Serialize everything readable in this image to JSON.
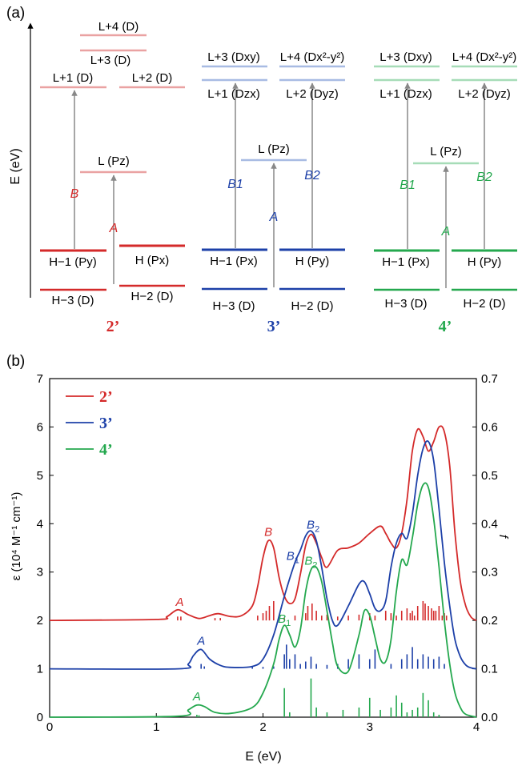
{
  "panel_a": {
    "label": "(a)",
    "axis_label": "E (eV)",
    "colors": {
      "red": "#d42a2a",
      "red_light": "#eaa2a2",
      "blue": "#1d40a8",
      "blue_light": "#a8bbe3",
      "green": "#24a84e",
      "green_light": "#a6dcb7",
      "arrow": "#888888"
    },
    "compounds": [
      {
        "name": "2’",
        "color": "#d42a2a",
        "light_color": "#eaa2a2",
        "levels": [
          {
            "text": "L+4 (D)",
            "role": "lumo"
          },
          {
            "text": "L+3 (D)",
            "role": "lumo"
          },
          {
            "text": "L+1 (D)",
            "role": "lumo"
          },
          {
            "text": "L+2 (D)",
            "role": "lumo"
          },
          {
            "text": "L (Pz)",
            "role": "lumo"
          },
          {
            "text": "H−1 (Py)",
            "role": "homo"
          },
          {
            "text": "H (Px)",
            "role": "homo"
          },
          {
            "text": "H−3 (D)",
            "role": "homo"
          },
          {
            "text": "H−2 (D)",
            "role": "homo"
          }
        ],
        "transitions": [
          {
            "label": "B",
            "from": "H−1",
            "to": "L+1"
          },
          {
            "label": "A",
            "from": "H−2",
            "to": "L"
          }
        ]
      },
      {
        "name": "3’",
        "color": "#1d40a8",
        "light_color": "#a8bbe3",
        "levels": [
          {
            "text": "L+3 (Dxy)",
            "role": "lumo"
          },
          {
            "text": "L+4 (Dx²-y²)",
            "role": "lumo"
          },
          {
            "text": "L+1 (Dzx)",
            "role": "lumo"
          },
          {
            "text": "L+2 (Dyz)",
            "role": "lumo"
          },
          {
            "text": "L (Pz)",
            "role": "lumo"
          },
          {
            "text": "H−1 (Px)",
            "role": "homo"
          },
          {
            "text": "H (Py)",
            "role": "homo"
          },
          {
            "text": "H−3 (D)",
            "role": "homo"
          },
          {
            "text": "H−2 (D)",
            "role": "homo"
          }
        ],
        "transitions": [
          {
            "label": "B1",
            "from": "H−1",
            "to": "L+1"
          },
          {
            "label": "A",
            "from": "H−2",
            "to": "L"
          },
          {
            "label": "B2",
            "from": "H",
            "to": "L+2"
          }
        ]
      },
      {
        "name": "4’",
        "color": "#24a84e",
        "light_color": "#a6dcb7",
        "levels": [
          {
            "text": "L+3 (Dxy)",
            "role": "lumo"
          },
          {
            "text": "L+4 (Dx²-y²)",
            "role": "lumo"
          },
          {
            "text": "L+1 (Dzx)",
            "role": "lumo"
          },
          {
            "text": "L+2 (Dyz)",
            "role": "lumo"
          },
          {
            "text": "L (Pz)",
            "role": "lumo"
          },
          {
            "text": "H−1 (Px)",
            "role": "homo"
          },
          {
            "text": "H (Py)",
            "role": "homo"
          },
          {
            "text": "H−3 (D)",
            "role": "homo"
          },
          {
            "text": "H−2 (D)",
            "role": "homo"
          }
        ],
        "transitions": [
          {
            "label": "B1",
            "from": "H−1",
            "to": "L+1"
          },
          {
            "label": "A",
            "from": "H−2",
            "to": "L"
          },
          {
            "label": "B2",
            "from": "H",
            "to": "L+2"
          }
        ]
      }
    ]
  },
  "panel_b": {
    "label": "(b)"
  },
  "chart_data": {
    "type": "line",
    "title": "",
    "xlabel": "E (eV)",
    "ylabel": "ε (10⁴ M⁻¹ cm⁻¹)",
    "y2label": "f",
    "xlim": [
      0,
      4
    ],
    "ylim": [
      0,
      7
    ],
    "y2lim": [
      0,
      0.7
    ],
    "xticks": [
      "0",
      "1",
      "2",
      "3",
      "4"
    ],
    "yticks": [
      "0",
      "1",
      "2",
      "3",
      "4",
      "5",
      "6",
      "7"
    ],
    "y2ticks": [
      "0.0",
      "0.1",
      "0.2",
      "0.3",
      "0.4",
      "0.5",
      "0.6",
      "0.7"
    ],
    "legend": {
      "placement": "top-left",
      "entries": [
        "2’",
        "3’",
        "4’"
      ]
    },
    "series": [
      {
        "name": "2’",
        "color": "#d42a2a",
        "offset": 2,
        "x": [
          0,
          1.0,
          1.1,
          1.2,
          1.3,
          1.4,
          1.5,
          1.58,
          1.7,
          1.8,
          1.9,
          1.95,
          2.0,
          2.05,
          2.1,
          2.15,
          2.2,
          2.25,
          2.3,
          2.35,
          2.4,
          2.45,
          2.5,
          2.55,
          2.6,
          2.7,
          2.8,
          2.9,
          3.0,
          3.1,
          3.15,
          3.2,
          3.25,
          3.3,
          3.35,
          3.4,
          3.45,
          3.5,
          3.55,
          3.6,
          3.65,
          3.7,
          3.75,
          3.8,
          3.85,
          3.9,
          3.95,
          4.0
        ],
        "y": [
          2.0,
          2.02,
          2.08,
          2.22,
          2.12,
          2.04,
          2.1,
          2.14,
          2.08,
          2.1,
          2.3,
          2.7,
          3.3,
          3.65,
          3.5,
          2.9,
          2.5,
          2.35,
          2.45,
          2.95,
          3.55,
          3.78,
          3.6,
          3.3,
          3.1,
          3.45,
          3.5,
          3.6,
          3.8,
          3.95,
          3.8,
          3.6,
          3.5,
          3.8,
          4.5,
          5.5,
          5.95,
          5.8,
          5.5,
          5.7,
          6.0,
          5.9,
          5.2,
          3.8,
          2.8,
          2.3,
          2.07,
          2.0
        ]
      },
      {
        "name": "3’",
        "color": "#1d40a8",
        "offset": 1,
        "x": [
          0,
          1.2,
          1.3,
          1.35,
          1.42,
          1.5,
          1.6,
          1.7,
          1.9,
          2.0,
          2.1,
          2.2,
          2.3,
          2.35,
          2.4,
          2.45,
          2.5,
          2.55,
          2.6,
          2.65,
          2.7,
          2.8,
          2.9,
          2.95,
          3.0,
          3.05,
          3.1,
          3.15,
          3.2,
          3.25,
          3.3,
          3.35,
          3.4,
          3.45,
          3.5,
          3.55,
          3.6,
          3.65,
          3.7,
          3.75,
          3.8,
          3.85,
          3.9,
          3.95,
          4.0
        ],
        "y": [
          1.0,
          1.0,
          1.1,
          1.28,
          1.4,
          1.2,
          1.07,
          1.03,
          1.05,
          1.2,
          1.7,
          2.5,
          3.2,
          3.45,
          3.75,
          3.85,
          3.65,
          3.1,
          2.45,
          2.0,
          1.9,
          2.3,
          2.75,
          2.8,
          2.55,
          2.25,
          2.2,
          2.4,
          3.1,
          3.6,
          3.8,
          3.7,
          4.2,
          5.0,
          5.55,
          5.7,
          5.3,
          4.3,
          3.2,
          2.3,
          1.6,
          1.25,
          1.08,
          1.02,
          1.0
        ]
      },
      {
        "name": "4’",
        "color": "#24a84e",
        "offset": 0,
        "x": [
          0,
          1.2,
          1.3,
          1.38,
          1.45,
          1.55,
          1.7,
          1.9,
          2.0,
          2.1,
          2.15,
          2.2,
          2.25,
          2.3,
          2.35,
          2.4,
          2.45,
          2.5,
          2.55,
          2.6,
          2.65,
          2.7,
          2.8,
          2.9,
          2.95,
          3.0,
          3.05,
          3.1,
          3.15,
          3.2,
          3.25,
          3.3,
          3.35,
          3.4,
          3.45,
          3.5,
          3.55,
          3.6,
          3.65,
          3.7,
          3.75,
          3.8,
          3.85,
          3.9,
          4.0
        ],
        "y": [
          0.0,
          0.02,
          0.15,
          0.25,
          0.22,
          0.1,
          0.08,
          0.2,
          0.5,
          1.1,
          1.6,
          1.9,
          1.7,
          1.45,
          1.8,
          2.6,
          3.05,
          3.1,
          2.8,
          2.2,
          1.55,
          1.05,
          0.95,
          1.7,
          2.2,
          2.1,
          1.65,
          1.2,
          1.15,
          1.6,
          2.6,
          3.25,
          3.15,
          3.7,
          4.4,
          4.8,
          4.75,
          4.1,
          3.1,
          2.0,
          1.1,
          0.5,
          0.2,
          0.06,
          0.0
        ]
      }
    ],
    "annotations": [
      {
        "text": "A",
        "x": 1.22,
        "y": 2.3,
        "color": "#d42a2a"
      },
      {
        "text": "B",
        "x": 2.05,
        "y": 3.75,
        "color": "#d42a2a"
      },
      {
        "text": "A",
        "x": 1.42,
        "y": 1.5,
        "color": "#1d40a8"
      },
      {
        "text": "B1",
        "x": 2.28,
        "y": 3.25,
        "color": "#1d40a8"
      },
      {
        "text": "B2",
        "x": 2.47,
        "y": 3.9,
        "color": "#1d40a8"
      },
      {
        "text": "A",
        "x": 1.38,
        "y": 0.35,
        "color": "#24a84e"
      },
      {
        "text": "B1",
        "x": 2.2,
        "y": 1.95,
        "color": "#24a84e"
      },
      {
        "text": "B2",
        "x": 2.45,
        "y": 3.15,
        "color": "#24a84e"
      }
    ],
    "sticks": [
      {
        "series": "2’",
        "color": "#d42a2a",
        "base": 0.2,
        "x": [
          1.2,
          1.23,
          1.55,
          1.6,
          1.95,
          2.0,
          2.03,
          2.06,
          2.1,
          2.2,
          2.3,
          2.4,
          2.42,
          2.46,
          2.5,
          2.55,
          2.6,
          2.7,
          2.8,
          2.9,
          3.0,
          3.05,
          3.15,
          3.2,
          3.25,
          3.3,
          3.35,
          3.38,
          3.4,
          3.42,
          3.45,
          3.5,
          3.52,
          3.55,
          3.58,
          3.6,
          3.62,
          3.65,
          3.68,
          3.7,
          3.72
        ],
        "f": [
          0.008,
          0.008,
          0.005,
          0.005,
          0.01,
          0.015,
          0.02,
          0.03,
          0.04,
          0.005,
          0.01,
          0.015,
          0.03,
          0.035,
          0.02,
          0.01,
          0.012,
          0.008,
          0.01,
          0.012,
          0.015,
          0.01,
          0.02,
          0.015,
          0.01,
          0.02,
          0.025,
          0.015,
          0.02,
          0.01,
          0.03,
          0.04,
          0.035,
          0.03,
          0.025,
          0.02,
          0.02,
          0.03,
          0.01,
          0.015,
          0.01
        ]
      },
      {
        "series": "3’",
        "color": "#1d40a8",
        "base": 0.1,
        "x": [
          1.42,
          1.45,
          1.9,
          2.0,
          2.1,
          2.2,
          2.22,
          2.25,
          2.3,
          2.35,
          2.4,
          2.45,
          2.5,
          2.6,
          2.7,
          2.8,
          2.9,
          3.0,
          3.05,
          3.2,
          3.3,
          3.35,
          3.4,
          3.45,
          3.5,
          3.55,
          3.6,
          3.65,
          3.7
        ],
        "f": [
          0.01,
          0.005,
          0.004,
          0.004,
          0.005,
          0.03,
          0.05,
          0.02,
          0.03,
          0.01,
          0.015,
          0.025,
          0.01,
          0.008,
          0.01,
          0.02,
          0.03,
          0.02,
          0.04,
          0.01,
          0.02,
          0.03,
          0.045,
          0.02,
          0.03,
          0.025,
          0.02,
          0.025,
          0.01
        ]
      },
      {
        "series": "4’",
        "color": "#24a84e",
        "base": 0.0,
        "x": [
          1.38,
          1.4,
          2.2,
          2.25,
          2.45,
          2.5,
          2.6,
          2.75,
          2.9,
          3.0,
          3.1,
          3.2,
          3.25,
          3.3,
          3.35,
          3.4,
          3.45,
          3.5,
          3.55,
          3.6,
          3.65
        ],
        "f": [
          0.005,
          0.004,
          0.06,
          0.01,
          0.08,
          0.02,
          0.01,
          0.015,
          0.02,
          0.04,
          0.015,
          0.02,
          0.045,
          0.03,
          0.01,
          0.015,
          0.02,
          0.05,
          0.035,
          0.01,
          0.005
        ]
      }
    ]
  }
}
